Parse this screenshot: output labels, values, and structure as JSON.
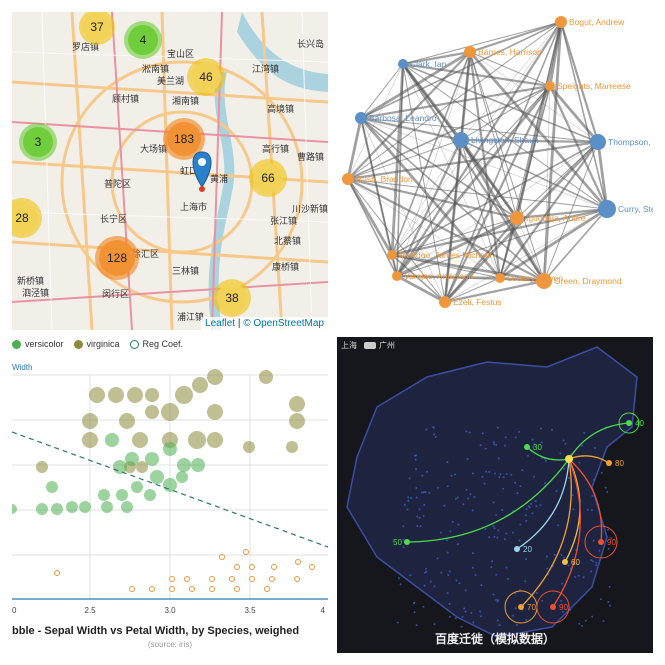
{
  "map": {
    "districts": [
      "宝山区",
      "长兴岛",
      "罗店镇",
      "美兰湖",
      "湘南镇",
      "顾村镇",
      "高境镇",
      "大场镇",
      "虹口",
      "黄浦",
      "普陀区",
      "长宁区",
      "上海市",
      "徐汇区",
      "闵行区",
      "北蔡镇",
      "张江镇",
      "三林镇",
      "康桥镇",
      "浦江镇",
      "泗泾镇",
      "新桥镇",
      "高行镇",
      "曹路镇",
      "川沙新镇",
      "江湾镇",
      "淞南镇"
    ],
    "clusters": [
      37,
      4,
      46,
      3,
      183,
      66,
      28,
      128,
      38
    ],
    "attribution_leaflet": "Leaflet",
    "attribution_sep": "|",
    "attribution_osm": "© OpenStreetMap"
  },
  "network": {
    "nodes": [
      "Bogut, Andrew",
      "Barnes, Harrison",
      "Clark, Ian",
      "Speights, Marreese",
      "Barbosa, Leandro",
      "Livingston, Shaun",
      "Thompson, Klay",
      "Rush, Brandon",
      "Iguodala, Andre",
      "Curry, Stephen",
      "McAdoo, James Michael",
      "Varejao, Anderson",
      "Looney, Kevon",
      "Green, Draymond",
      "Ezeli, Festus"
    ],
    "colors": {
      "blue": "#5b8fc7",
      "orange": "#f0963c",
      "edge": "#555555"
    }
  },
  "bubble": {
    "legend": [
      "versicolor",
      "virginica",
      "Reg Coef."
    ],
    "y_title": "Width",
    "x_ticks": [
      "0",
      "2.5",
      "3.0",
      "3.5",
      "4"
    ],
    "title": "bble - Sepal Width vs Petal Width, by Species, weighed",
    "source": "(source: iris)",
    "colors": {
      "versicolor": "#4caf50",
      "virginica": "#8b8b3a",
      "setosa": "#f0963c",
      "reg": "#2a7a6a"
    }
  },
  "migration": {
    "legend": [
      "上海",
      "广州"
    ],
    "values": [
      "40",
      "30",
      "80",
      "90",
      "50",
      "20",
      "60",
      "70",
      "90"
    ],
    "title": "百度迁徙（模拟数据）"
  }
}
